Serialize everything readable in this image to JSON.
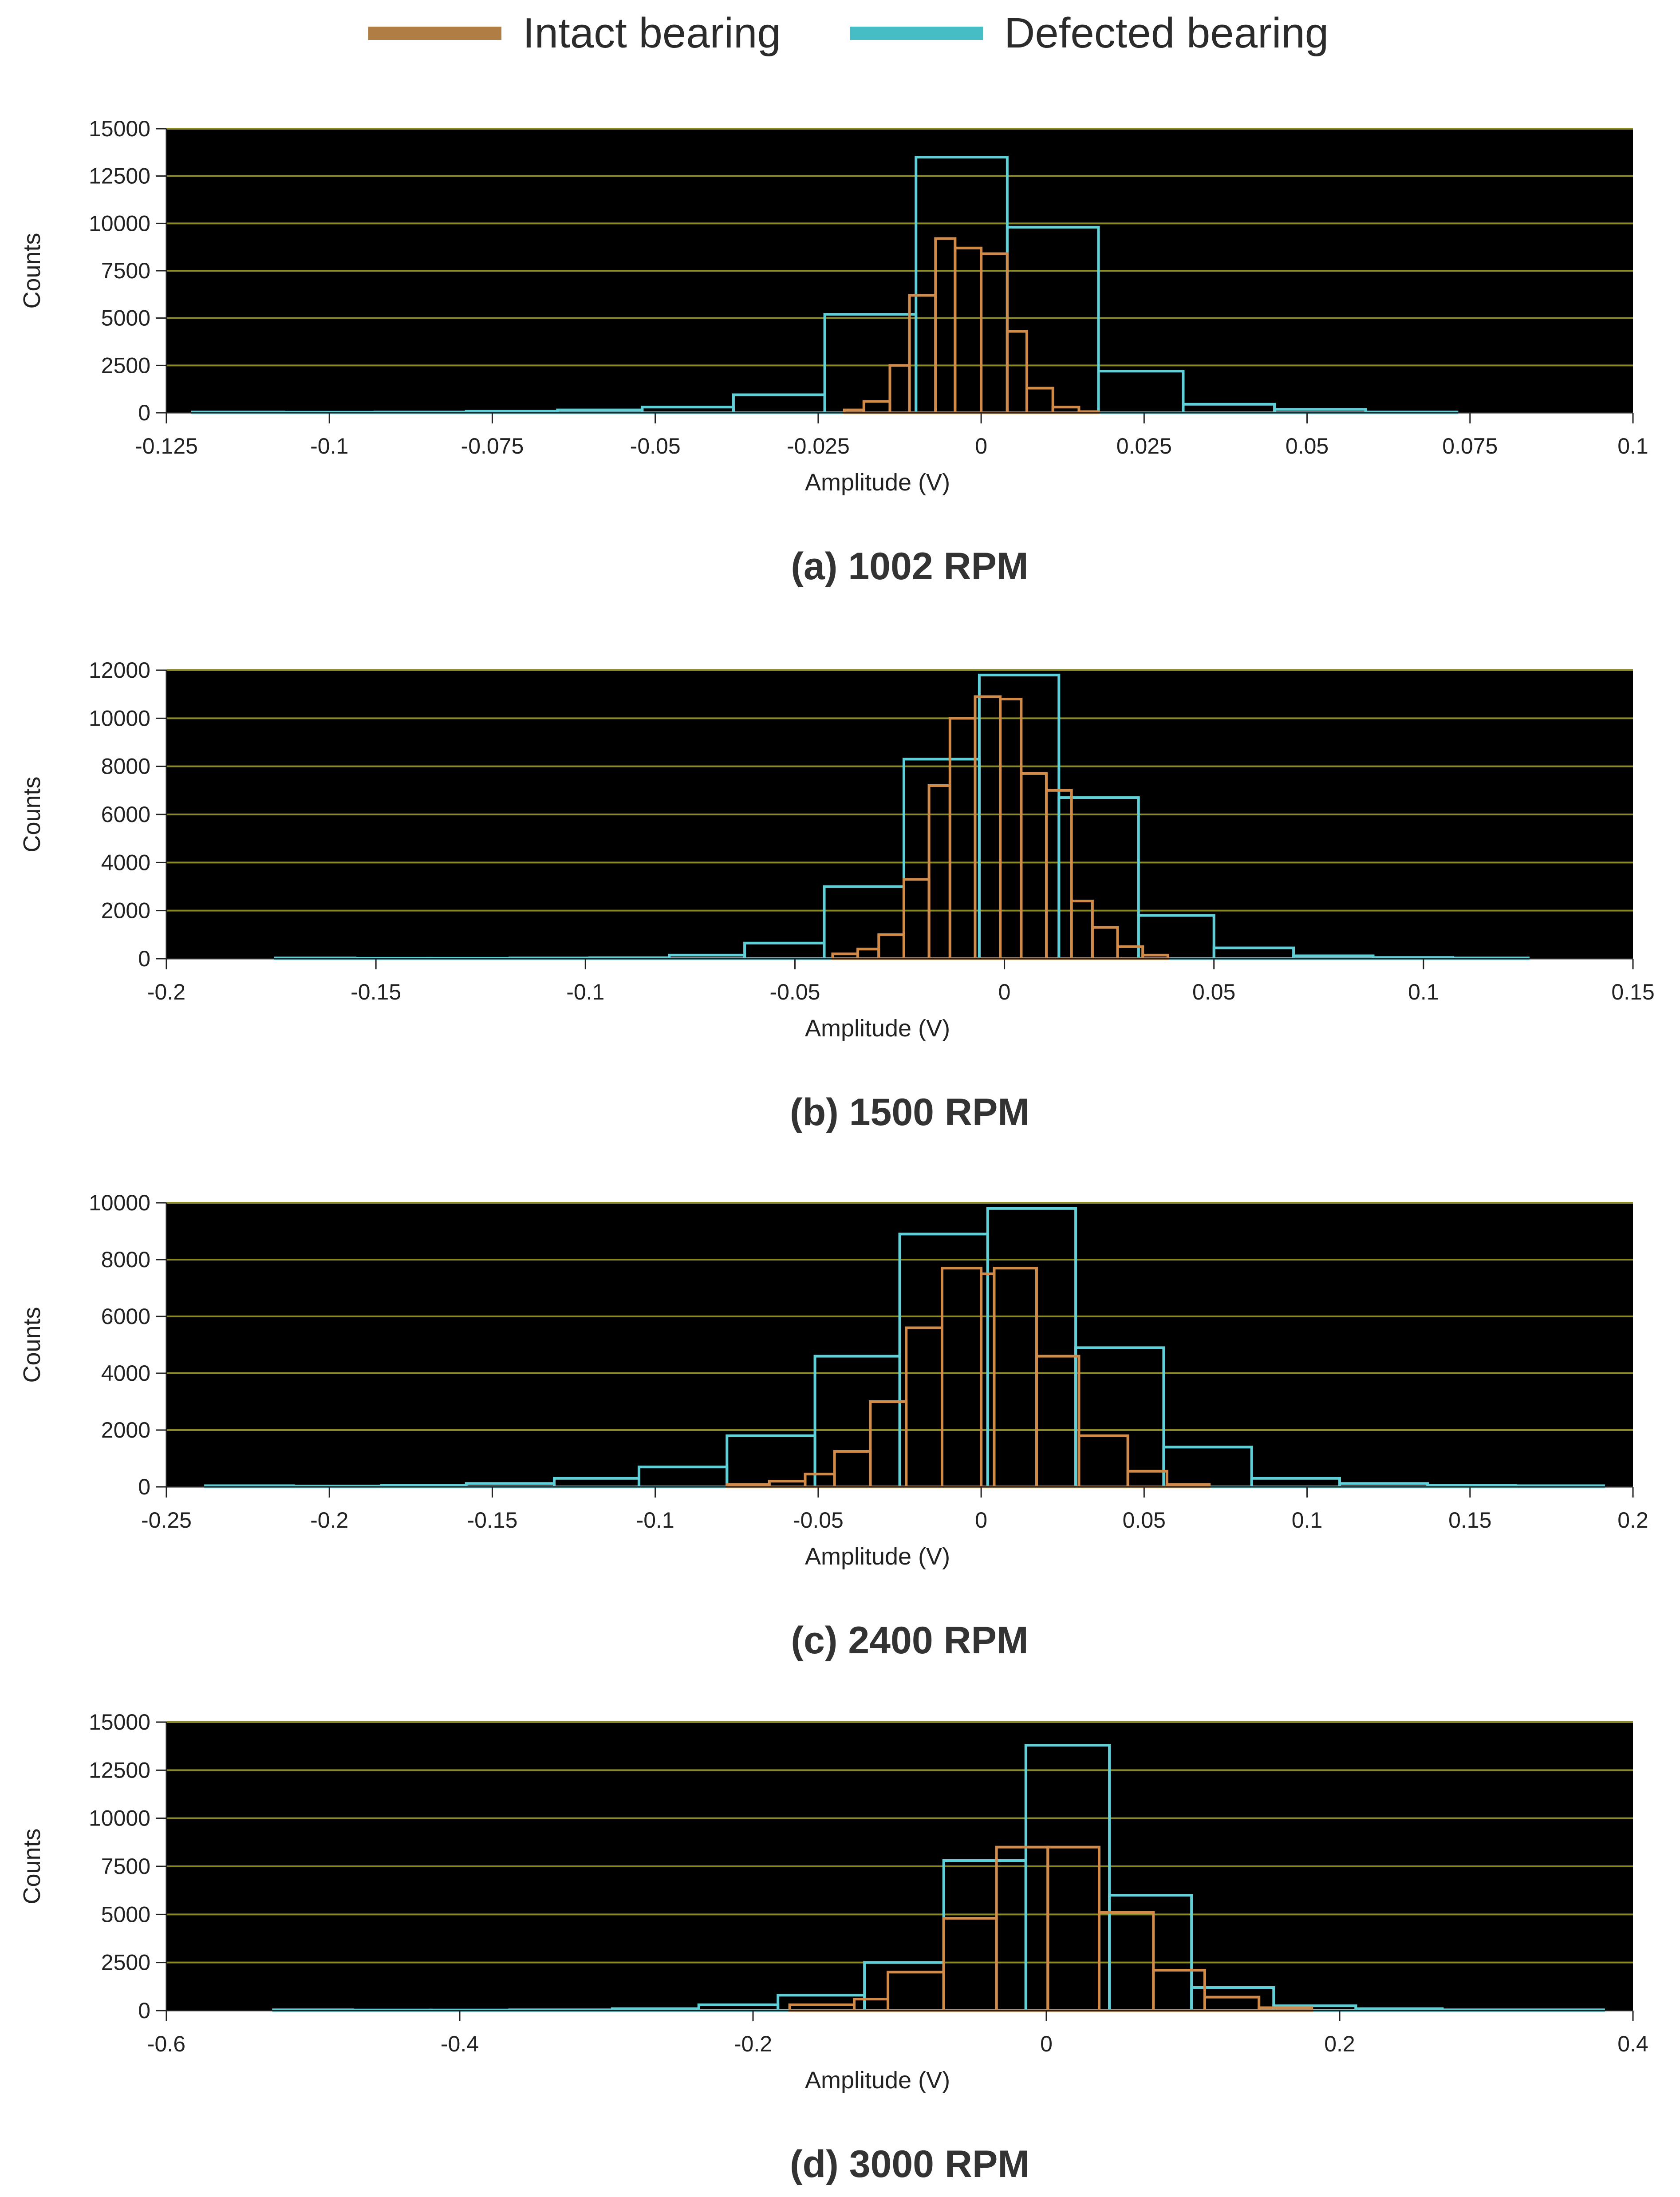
{
  "legend": {
    "items": [
      {
        "label": "Intact bearing",
        "color": "#b07d45"
      },
      {
        "label": "Defected bearing",
        "color": "#46bcc4"
      }
    ]
  },
  "style": {
    "plot_background": "#000000",
    "gridline_color": "#8a8a2a",
    "intact_outline": "#d08a4a",
    "defected_outline": "#5fd0d8"
  },
  "chart_data": [
    {
      "type": "bar",
      "title": "(a) 1002 RPM",
      "xlabel": "Amplitude (V)",
      "ylabel": "Counts",
      "xlim": [
        -0.125,
        0.1
      ],
      "ylim": [
        0,
        15000
      ],
      "xticks": [
        "-0.125",
        "-0.1",
        "-0.075",
        "-0.05",
        "-0.025",
        "0",
        "0.025",
        "0.05",
        "0.075",
        "0.1"
      ],
      "xtick_values": [
        -0.125,
        -0.1,
        -0.075,
        -0.05,
        -0.025,
        0,
        0.025,
        0.05,
        0.075,
        0.1
      ],
      "yticks": [
        "0",
        "2500",
        "5000",
        "7500",
        "10000",
        "12500",
        "15000"
      ],
      "ytick_values": [
        0,
        2500,
        5000,
        7500,
        10000,
        12500,
        15000
      ],
      "grid": true,
      "series": [
        {
          "name": "Defected bearing",
          "bins": [
            {
              "x0": -0.121,
              "x1": -0.107,
              "count": 40
            },
            {
              "x0": -0.107,
              "x1": -0.093,
              "count": 30
            },
            {
              "x0": -0.093,
              "x1": -0.079,
              "count": 40
            },
            {
              "x0": -0.079,
              "x1": -0.065,
              "count": 80
            },
            {
              "x0": -0.065,
              "x1": -0.052,
              "count": 150
            },
            {
              "x0": -0.052,
              "x1": -0.038,
              "count": 300
            },
            {
              "x0": -0.038,
              "x1": -0.024,
              "count": 950
            },
            {
              "x0": -0.024,
              "x1": -0.01,
              "count": 5200
            },
            {
              "x0": -0.01,
              "x1": 0.004,
              "count": 13500
            },
            {
              "x0": 0.004,
              "x1": 0.018,
              "count": 9800
            },
            {
              "x0": 0.018,
              "x1": 0.031,
              "count": 2200
            },
            {
              "x0": 0.031,
              "x1": 0.045,
              "count": 450
            },
            {
              "x0": 0.045,
              "x1": 0.059,
              "count": 180
            },
            {
              "x0": 0.059,
              "x1": 0.073,
              "count": 40
            }
          ]
        },
        {
          "name": "Intact bearing",
          "bins": [
            {
              "x0": -0.021,
              "x1": -0.018,
              "count": 150
            },
            {
              "x0": -0.018,
              "x1": -0.014,
              "count": 600
            },
            {
              "x0": -0.014,
              "x1": -0.011,
              "count": 2500
            },
            {
              "x0": -0.011,
              "x1": -0.007,
              "count": 6200
            },
            {
              "x0": -0.007,
              "x1": -0.004,
              "count": 9200
            },
            {
              "x0": -0.004,
              "x1": 0.0,
              "count": 8700
            },
            {
              "x0": 0.0,
              "x1": 0.004,
              "count": 8400
            },
            {
              "x0": 0.004,
              "x1": 0.007,
              "count": 4300
            },
            {
              "x0": 0.007,
              "x1": 0.011,
              "count": 1300
            },
            {
              "x0": 0.011,
              "x1": 0.015,
              "count": 300
            },
            {
              "x0": 0.015,
              "x1": 0.018,
              "count": 60
            }
          ]
        }
      ]
    },
    {
      "type": "bar",
      "title": "(b) 1500 RPM",
      "xlabel": "Amplitude (V)",
      "ylabel": "Counts",
      "xlim": [
        -0.2,
        0.15
      ],
      "ylim": [
        0,
        12000
      ],
      "xticks": [
        "-0.2",
        "-0.15",
        "-0.1",
        "-0.05",
        "0",
        "0.05",
        "0.1",
        "0.15"
      ],
      "xtick_values": [
        -0.2,
        -0.15,
        -0.1,
        -0.05,
        0,
        0.05,
        0.1,
        0.15
      ],
      "yticks": [
        "0",
        "2000",
        "4000",
        "6000",
        "8000",
        "10000",
        "12000"
      ],
      "ytick_values": [
        0,
        2000,
        4000,
        6000,
        8000,
        10000,
        12000
      ],
      "grid": true,
      "series": [
        {
          "name": "Defected bearing",
          "bins": [
            {
              "x0": -0.174,
              "x1": -0.155,
              "count": 30
            },
            {
              "x0": -0.155,
              "x1": -0.137,
              "count": 20
            },
            {
              "x0": -0.137,
              "x1": -0.118,
              "count": 20
            },
            {
              "x0": -0.118,
              "x1": -0.099,
              "count": 30
            },
            {
              "x0": -0.099,
              "x1": -0.08,
              "count": 40
            },
            {
              "x0": -0.08,
              "x1": -0.062,
              "count": 150
            },
            {
              "x0": -0.062,
              "x1": -0.043,
              "count": 650
            },
            {
              "x0": -0.043,
              "x1": -0.024,
              "count": 3000
            },
            {
              "x0": -0.024,
              "x1": -0.006,
              "count": 8300
            },
            {
              "x0": -0.006,
              "x1": 0.013,
              "count": 11800
            },
            {
              "x0": 0.013,
              "x1": 0.032,
              "count": 6700
            },
            {
              "x0": 0.032,
              "x1": 0.05,
              "count": 1800
            },
            {
              "x0": 0.05,
              "x1": 0.069,
              "count": 450
            },
            {
              "x0": 0.069,
              "x1": 0.088,
              "count": 120
            },
            {
              "x0": 0.088,
              "x1": 0.107,
              "count": 50
            },
            {
              "x0": 0.107,
              "x1": 0.125,
              "count": 30
            }
          ]
        },
        {
          "name": "Intact bearing",
          "bins": [
            {
              "x0": -0.041,
              "x1": -0.035,
              "count": 200
            },
            {
              "x0": -0.035,
              "x1": -0.03,
              "count": 400
            },
            {
              "x0": -0.03,
              "x1": -0.024,
              "count": 1000
            },
            {
              "x0": -0.024,
              "x1": -0.018,
              "count": 3300
            },
            {
              "x0": -0.018,
              "x1": -0.013,
              "count": 7200
            },
            {
              "x0": -0.013,
              "x1": -0.007,
              "count": 10000
            },
            {
              "x0": -0.007,
              "x1": -0.001,
              "count": 10900
            },
            {
              "x0": -0.001,
              "x1": 0.004,
              "count": 10800
            },
            {
              "x0": 0.004,
              "x1": 0.01,
              "count": 7700
            },
            {
              "x0": 0.01,
              "x1": 0.016,
              "count": 7000
            },
            {
              "x0": 0.016,
              "x1": 0.021,
              "count": 2400
            },
            {
              "x0": 0.021,
              "x1": 0.027,
              "count": 1300
            },
            {
              "x0": 0.027,
              "x1": 0.033,
              "count": 500
            },
            {
              "x0": 0.033,
              "x1": 0.039,
              "count": 150
            }
          ]
        }
      ]
    },
    {
      "type": "bar",
      "title": "(c) 2400 RPM",
      "xlabel": "Amplitude (V)",
      "ylabel": "Counts",
      "xlim": [
        -0.25,
        0.2
      ],
      "ylim": [
        0,
        10000
      ],
      "xticks": [
        "-0.25",
        "-0.2",
        "-0.15",
        "-0.1",
        "-0.05",
        "0",
        "0.05",
        "0.1",
        "0.15",
        "0.2"
      ],
      "xtick_values": [
        -0.25,
        -0.2,
        -0.15,
        -0.1,
        -0.05,
        0,
        0.05,
        0.1,
        0.15,
        0.2
      ],
      "yticks": [
        "0",
        "2000",
        "4000",
        "6000",
        "8000",
        "10000"
      ],
      "ytick_values": [
        0,
        2000,
        4000,
        6000,
        8000,
        10000
      ],
      "grid": true,
      "series": [
        {
          "name": "Defected bearing",
          "bins": [
            {
              "x0": -0.238,
              "x1": -0.211,
              "count": 40
            },
            {
              "x0": -0.211,
              "x1": -0.184,
              "count": 30
            },
            {
              "x0": -0.184,
              "x1": -0.158,
              "count": 50
            },
            {
              "x0": -0.158,
              "x1": -0.131,
              "count": 120
            },
            {
              "x0": -0.131,
              "x1": -0.105,
              "count": 300
            },
            {
              "x0": -0.105,
              "x1": -0.078,
              "count": 700
            },
            {
              "x0": -0.078,
              "x1": -0.051,
              "count": 1800
            },
            {
              "x0": -0.051,
              "x1": -0.025,
              "count": 4600
            },
            {
              "x0": -0.025,
              "x1": 0.002,
              "count": 8900
            },
            {
              "x0": 0.002,
              "x1": 0.029,
              "count": 9800
            },
            {
              "x0": 0.029,
              "x1": 0.056,
              "count": 4900
            },
            {
              "x0": 0.056,
              "x1": 0.083,
              "count": 1400
            },
            {
              "x0": 0.083,
              "x1": 0.11,
              "count": 300
            },
            {
              "x0": 0.11,
              "x1": 0.137,
              "count": 120
            },
            {
              "x0": 0.137,
              "x1": 0.164,
              "count": 50
            },
            {
              "x0": 0.164,
              "x1": 0.191,
              "count": 40
            }
          ]
        },
        {
          "name": "Intact bearing",
          "bins": [
            {
              "x0": -0.078,
              "x1": -0.065,
              "count": 80
            },
            {
              "x0": -0.065,
              "x1": -0.054,
              "count": 200
            },
            {
              "x0": -0.054,
              "x1": -0.045,
              "count": 450
            },
            {
              "x0": -0.045,
              "x1": -0.034,
              "count": 1250
            },
            {
              "x0": -0.034,
              "x1": -0.023,
              "count": 3000
            },
            {
              "x0": -0.023,
              "x1": -0.012,
              "count": 5600
            },
            {
              "x0": -0.012,
              "x1": 0.0,
              "count": 7700
            },
            {
              "x0": 0.0,
              "x1": 0.004,
              "count": 7500
            },
            {
              "x0": 0.004,
              "x1": 0.017,
              "count": 7700
            },
            {
              "x0": 0.017,
              "x1": 0.03,
              "count": 4600
            },
            {
              "x0": 0.03,
              "x1": 0.045,
              "count": 1800
            },
            {
              "x0": 0.045,
              "x1": 0.057,
              "count": 550
            },
            {
              "x0": 0.057,
              "x1": 0.07,
              "count": 80
            }
          ]
        }
      ]
    },
    {
      "type": "bar",
      "title": "(d) 3000 RPM",
      "xlabel": "Amplitude (V)",
      "ylabel": "Counts",
      "xlim": [
        -0.6,
        0.4
      ],
      "ylim": [
        0,
        15000
      ],
      "xticks": [
        "-0.6",
        "-0.4",
        "-0.2",
        "0",
        "0.2",
        "0.4"
      ],
      "xtick_values": [
        -0.6,
        -0.4,
        -0.2,
        0,
        0.2,
        0.4
      ],
      "yticks": [
        "0",
        "2500",
        "5000",
        "7500",
        "10000",
        "12500",
        "15000"
      ],
      "ytick_values": [
        0,
        2500,
        5000,
        7500,
        10000,
        12500,
        15000
      ],
      "grid": true,
      "series": [
        {
          "name": "Defected bearing",
          "bins": [
            {
              "x0": -0.527,
              "x1": -0.473,
              "count": 40
            },
            {
              "x0": -0.473,
              "x1": -0.42,
              "count": 30
            },
            {
              "x0": -0.42,
              "x1": -0.366,
              "count": 30
            },
            {
              "x0": -0.366,
              "x1": -0.296,
              "count": 40
            },
            {
              "x0": -0.296,
              "x1": -0.237,
              "count": 100
            },
            {
              "x0": -0.237,
              "x1": -0.183,
              "count": 300
            },
            {
              "x0": -0.183,
              "x1": -0.124,
              "count": 800
            },
            {
              "x0": -0.124,
              "x1": -0.07,
              "count": 2500
            },
            {
              "x0": -0.07,
              "x1": -0.014,
              "count": 7800
            },
            {
              "x0": -0.014,
              "x1": 0.043,
              "count": 13800
            },
            {
              "x0": 0.043,
              "x1": 0.099,
              "count": 6000
            },
            {
              "x0": 0.099,
              "x1": 0.155,
              "count": 1200
            },
            {
              "x0": 0.155,
              "x1": 0.211,
              "count": 250
            },
            {
              "x0": 0.211,
              "x1": 0.27,
              "count": 100
            },
            {
              "x0": 0.27,
              "x1": 0.38,
              "count": 40
            }
          ]
        },
        {
          "name": "Intact bearing",
          "bins": [
            {
              "x0": -0.175,
              "x1": -0.131,
              "count": 300
            },
            {
              "x0": -0.131,
              "x1": -0.108,
              "count": 600
            },
            {
              "x0": -0.108,
              "x1": -0.07,
              "count": 2000
            },
            {
              "x0": -0.07,
              "x1": -0.034,
              "count": 4800
            },
            {
              "x0": -0.034,
              "x1": 0.001,
              "count": 8500
            },
            {
              "x0": 0.001,
              "x1": 0.036,
              "count": 8500
            },
            {
              "x0": 0.036,
              "x1": 0.073,
              "count": 5100
            },
            {
              "x0": 0.073,
              "x1": 0.108,
              "count": 2100
            },
            {
              "x0": 0.108,
              "x1": 0.145,
              "count": 700
            },
            {
              "x0": 0.145,
              "x1": 0.181,
              "count": 150
            }
          ]
        }
      ]
    }
  ]
}
